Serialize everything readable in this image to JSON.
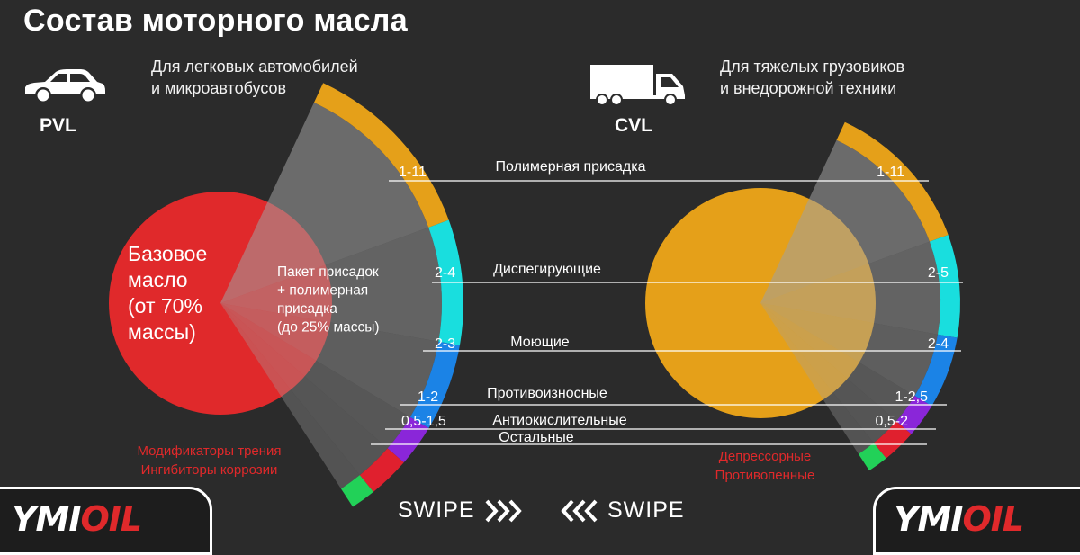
{
  "title": "Состав моторного масла",
  "left": {
    "code": "PVL",
    "subtitle_line1": "Для легковых автомобилей",
    "subtitle_line2": "и микроавтобусов",
    "base_label": [
      "Базовое",
      "масло",
      "(от 70%",
      "массы)"
    ],
    "package_label": [
      "Пакет присадок",
      "+ полимерная",
      "присадка",
      "(до 25% массы)"
    ],
    "red_notes": [
      "Модификаторы трения",
      "Ингибиторы коррозии"
    ],
    "pie_color": "#e0292b"
  },
  "right": {
    "code": "CVL",
    "subtitle_line1": "Для тяжелых грузовиков",
    "subtitle_line2": "и внедорожной техники",
    "red_notes": [
      "Депрессорные",
      "Противопенные"
    ],
    "pie_color": "#e5a019"
  },
  "segments": [
    {
      "name": "Полимерная присадка",
      "pvl": "1-11",
      "cvl": "1-11",
      "color": "#e5a019"
    },
    {
      "name": "Диспегирующие",
      "pvl": "2-4",
      "cvl": "2-5",
      "color": "#19dede"
    },
    {
      "name": "Моющие",
      "pvl": "2-3",
      "cvl": "2-4",
      "color": "#1b83e6"
    },
    {
      "name": "Противоизносные",
      "pvl": "1-2",
      "cvl": "1-2,5",
      "color": "#8a26d9"
    },
    {
      "name": "Антиокислительные",
      "pvl": "0,5-1,5",
      "cvl": "0,5-2",
      "color": "#e0202e"
    },
    {
      "name": "Остальные",
      "pvl": "",
      "cvl": "",
      "color": "#22d158"
    }
  ],
  "swipe": {
    "left_label": "SWIPE",
    "right_label": "SWIPE"
  },
  "logo": {
    "part1": "YMI",
    "part2": "OIL"
  },
  "icons": {
    "car": "car-icon",
    "truck": "truck-icon",
    "chevrons": "double-chevron-icon"
  }
}
